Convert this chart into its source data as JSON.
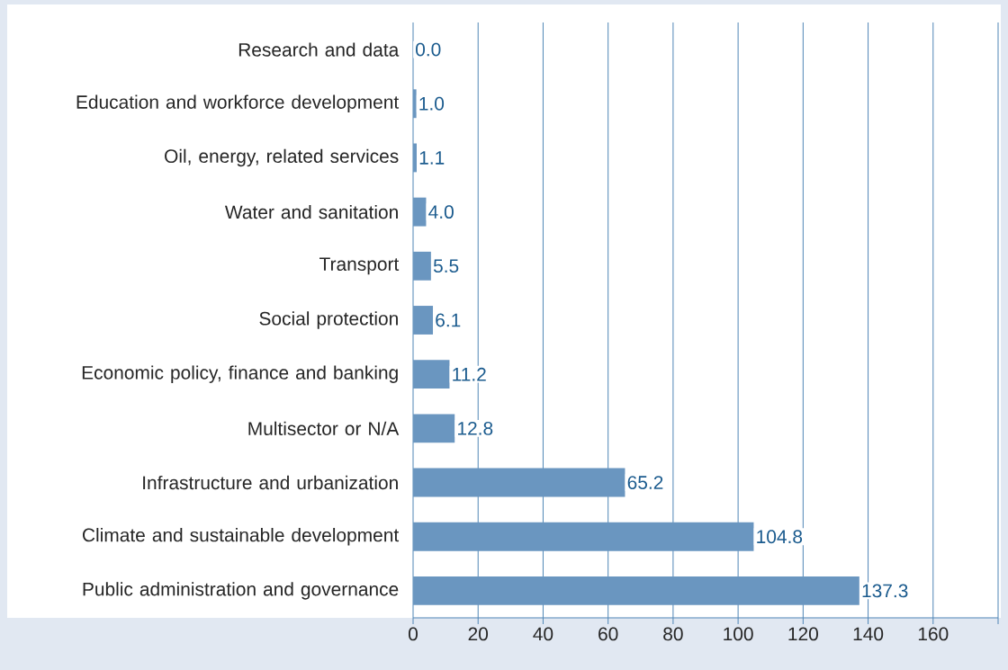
{
  "chart_data": {
    "type": "bar",
    "orientation": "horizontal",
    "categories": [
      "Research and data",
      "Education and workforce development",
      "Oil, energy, related services",
      "Water and sanitation",
      "Transport",
      "Social protection",
      "Economic policy, finance and banking",
      "Multisector or N/A",
      "Infrastructure and urbanization",
      "Climate and sustainable development",
      "Public administration and governance"
    ],
    "values": [
      0.0,
      1.0,
      1.1,
      4.0,
      5.5,
      6.1,
      11.2,
      12.8,
      65.2,
      104.8,
      137.3
    ],
    "color": "#6a96c0",
    "xlim": [
      0,
      180
    ],
    "xticks": [
      0,
      20,
      40,
      60,
      80,
      100,
      120,
      140,
      160,
      {
        "value": 180,
        "label": null
      }
    ],
    "value_labels": [
      "0.0",
      "1.0",
      "1.1",
      "4.0",
      "5.5",
      "6.1",
      "11.2",
      "12.8",
      "65.2",
      "104.8",
      "137.3"
    ],
    "grid": "x"
  }
}
